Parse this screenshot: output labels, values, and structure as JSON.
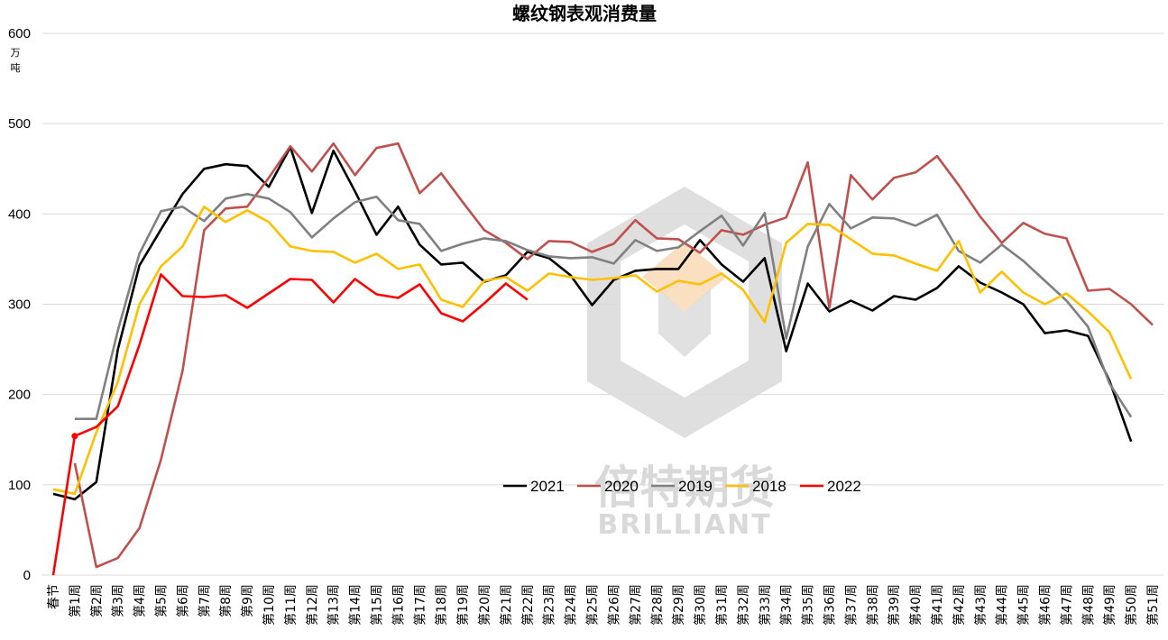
{
  "chart_data": {
    "type": "line",
    "title": "螺纹钢表观消费量",
    "unit": "万\n吨",
    "ylim": [
      0,
      600
    ],
    "yticks": [
      0,
      100,
      200,
      300,
      400,
      500,
      600
    ],
    "grid": true,
    "legend_position": "bottom-center",
    "categories": [
      "春节",
      "第1周",
      "第2周",
      "第3周",
      "第4周",
      "第5周",
      "第6周",
      "第7周",
      "第8周",
      "第9周",
      "第10周",
      "第11周",
      "第12周",
      "第13周",
      "第14周",
      "第15周",
      "第16周",
      "第17周",
      "第18周",
      "第19周",
      "第20周",
      "第21周",
      "第22周",
      "第23周",
      "第24周",
      "第25周",
      "第26周",
      "第27周",
      "第28周",
      "第29周",
      "第30周",
      "第31周",
      "第32周",
      "第33周",
      "第34周",
      "第35周",
      "第36周",
      "第37周",
      "第38周",
      "第39周",
      "第40周",
      "第41周",
      "第42周",
      "第43周",
      "第44周",
      "第45周",
      "第46周",
      "第47周",
      "第48周",
      "第49周",
      "第50周",
      "第51周"
    ],
    "series": [
      {
        "name": "2021",
        "color": "#000000",
        "values": [
          90,
          84,
          103,
          250,
          343,
          383,
          422,
          450,
          455,
          453,
          430,
          474,
          401,
          470,
          425,
          377,
          408,
          366,
          344,
          346,
          325,
          332,
          358,
          351,
          332,
          299,
          327,
          337,
          339,
          339,
          371,
          344,
          325,
          351,
          248,
          323,
          292,
          304,
          293,
          309,
          305,
          318,
          342,
          324,
          313,
          300,
          268,
          271,
          265,
          215,
          148,
          null
        ]
      },
      {
        "name": "2020",
        "color": "#c0504d",
        "values": [
          null,
          124,
          9,
          19,
          52,
          128,
          226,
          382,
          406,
          408,
          440,
          475,
          447,
          478,
          443,
          473,
          478,
          423,
          445,
          413,
          382,
          368,
          350,
          370,
          369,
          358,
          367,
          393,
          373,
          372,
          357,
          382,
          377,
          388,
          396,
          457,
          296,
          443,
          416,
          440,
          446,
          464,
          432,
          397,
          368,
          390,
          378,
          373,
          315,
          317,
          300,
          277
        ]
      },
      {
        "name": "2019",
        "color": "#808080",
        "values": [
          null,
          173,
          173,
          271,
          356,
          403,
          408,
          392,
          417,
          422,
          417,
          402,
          374,
          395,
          413,
          419,
          393,
          389,
          359,
          367,
          373,
          370,
          360,
          353,
          351,
          352,
          345,
          371,
          359,
          363,
          381,
          398,
          365,
          401,
          262,
          364,
          411,
          384,
          396,
          395,
          387,
          399,
          359,
          346,
          366,
          348,
          326,
          304,
          275,
          212,
          175,
          null
        ]
      },
      {
        "name": "2018",
        "color": "#ffc000",
        "values": [
          95,
          90,
          158,
          214,
          300,
          342,
          364,
          408,
          391,
          404,
          391,
          364,
          359,
          358,
          346,
          356,
          339,
          344,
          305,
          297,
          326,
          330,
          315,
          334,
          330,
          327,
          329,
          332,
          314,
          326,
          322,
          334,
          316,
          280,
          368,
          389,
          388,
          372,
          356,
          354,
          345,
          337,
          370,
          313,
          336,
          313,
          300,
          312,
          292,
          269,
          217,
          null
        ]
      },
      {
        "name": "2022",
        "color": "#ff0000",
        "values": [
          0,
          154,
          164,
          187,
          255,
          333,
          309,
          308,
          310,
          296,
          312,
          328,
          327,
          302,
          328,
          311,
          307,
          322,
          290,
          281,
          301,
          323,
          305,
          null,
          null,
          null,
          null,
          null,
          null,
          null,
          null,
          null,
          null,
          null,
          null,
          null,
          null,
          null,
          null,
          null,
          null,
          null,
          null,
          null,
          null,
          null,
          null,
          null,
          null,
          null,
          null,
          null
        ]
      }
    ]
  },
  "watermark": {
    "brand_cn": "倍特期货",
    "brand_en": "BRILLIANT"
  }
}
